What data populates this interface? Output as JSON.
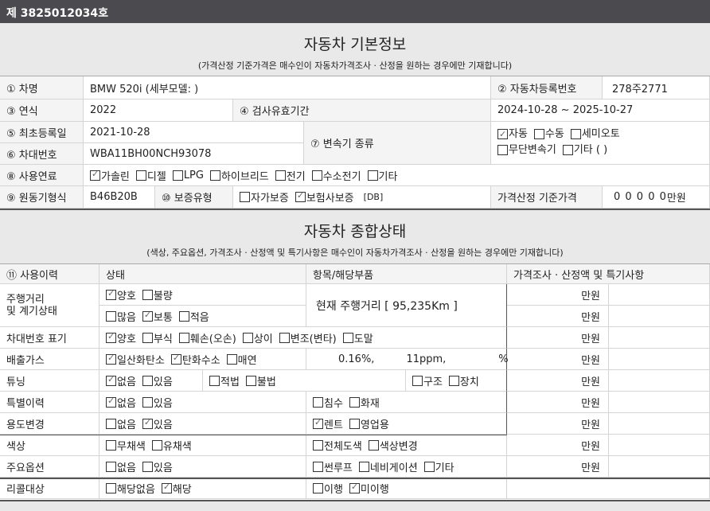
{
  "doc_number": "제 3825012034호",
  "basic": {
    "title": "자동차 기본정보",
    "subtitle": "(가격산정 기준가격은 매수인이 자동차가격조사 · 산정을 원하는 경우에만 기재합니다)",
    "car_name_label": "① 차명",
    "car_name": "BMW 520i (세부모델: )",
    "reg_no_label": "② 자동차등록번호",
    "reg_no": "278주2771",
    "year_label": "③ 연식",
    "year": "2022",
    "inspect_label": "④ 검사유효기간",
    "inspect": "2024-10-28 ~ 2025-10-27",
    "first_reg_label": "⑤ 최초등록일",
    "first_reg": "2021-10-28",
    "vin_label": "⑥ 차대번호",
    "vin": "WBA11BH00NCH93078",
    "trans_label": "⑦ 변속기 종류",
    "trans_row1": [
      {
        "label": "자동",
        "checked": true
      },
      {
        "label": "수동",
        "checked": false
      },
      {
        "label": "세미오토",
        "checked": false
      }
    ],
    "trans_row2": [
      {
        "label": "무단변속기",
        "checked": false
      },
      {
        "label": "기타 (       )",
        "checked": false
      }
    ],
    "fuel_label": "⑧ 사용연료",
    "fuel": [
      {
        "label": "가솔린",
        "checked": true
      },
      {
        "label": "디젤",
        "checked": false
      },
      {
        "label": "LPG",
        "checked": false
      },
      {
        "label": "하이브리드",
        "checked": false
      },
      {
        "label": "전기",
        "checked": false
      },
      {
        "label": "수소전기",
        "checked": false
      },
      {
        "label": "기타",
        "checked": false
      }
    ],
    "engine_label": "⑨ 원동기형식",
    "engine": "B46B20B",
    "warranty_label": "⑩ 보증유형",
    "warranty": [
      {
        "label": "자가보증",
        "checked": false
      },
      {
        "label": "보험사보증",
        "checked": true
      }
    ],
    "warranty_note": "[DB]",
    "base_price_label": "가격산정 기준가격",
    "base_price": "0 0 0 0 0",
    "base_price_unit": "만원"
  },
  "overall": {
    "title": "자동차 종합상태",
    "subtitle": "(색상, 주요옵션, 가격조사 · 산정액 및 특기사항은 매수인이 자동차가격조사 · 산정을 원하는 경우에만 기재합니다)",
    "headers": [
      "⑪ 사용이력",
      "상태",
      "항목/해당부품",
      "가격조사 · 산정액 및 특기사항"
    ],
    "unit": "만원",
    "mileage_label": "주행거리\n및 계기상태",
    "mileage_row1": [
      {
        "label": "양호",
        "checked": true
      },
      {
        "label": "불량",
        "checked": false
      }
    ],
    "mileage_row2": [
      {
        "label": "많음",
        "checked": false
      },
      {
        "label": "보통",
        "checked": true
      },
      {
        "label": "적음",
        "checked": false
      }
    ],
    "mileage_text": "현재 주행거리 [ 95,235Km ]",
    "vin_mark_label": "차대번호 표기",
    "vin_mark": [
      {
        "label": "양호",
        "checked": true
      },
      {
        "label": "부식",
        "checked": false
      },
      {
        "label": "훼손(오손)",
        "checked": false
      },
      {
        "label": "상이",
        "checked": false
      },
      {
        "label": "변조(변타)",
        "checked": false
      },
      {
        "label": "도말",
        "checked": false
      }
    ],
    "emission_label": "배출가스",
    "emission": [
      {
        "label": "일산화탄소",
        "checked": true
      },
      {
        "label": "탄화수소",
        "checked": true
      },
      {
        "label": "매연",
        "checked": false
      }
    ],
    "emission_values": [
      "0.16%,",
      "11ppm,",
      "%"
    ],
    "tuning_label": "튜닝",
    "tuning": [
      {
        "label": "없음",
        "checked": true
      },
      {
        "label": "있음",
        "checked": false
      }
    ],
    "tuning_legal": [
      {
        "label": "적법",
        "checked": false
      },
      {
        "label": "불법",
        "checked": false
      }
    ],
    "tuning_type": [
      {
        "label": "구조",
        "checked": false
      },
      {
        "label": "장치",
        "checked": false
      }
    ],
    "special_label": "특별이력",
    "special": [
      {
        "label": "없음",
        "checked": true
      },
      {
        "label": "있음",
        "checked": false
      }
    ],
    "special_items": [
      {
        "label": "침수",
        "checked": false
      },
      {
        "label": "화재",
        "checked": false
      }
    ],
    "usage_label": "용도변경",
    "usage": [
      {
        "label": "없음",
        "checked": false
      },
      {
        "label": "있음",
        "checked": true
      }
    ],
    "usage_items": [
      {
        "label": "렌트",
        "checked": true
      },
      {
        "label": "영업용",
        "checked": false
      }
    ],
    "color_label": "색상",
    "color": [
      {
        "label": "무채색",
        "checked": false
      },
      {
        "label": "유채색",
        "checked": false
      }
    ],
    "color_items": [
      {
        "label": "전체도색",
        "checked": false
      },
      {
        "label": "색상변경",
        "checked": false
      }
    ],
    "options_label": "주요옵션",
    "options": [
      {
        "label": "없음",
        "checked": false
      },
      {
        "label": "있음",
        "checked": false
      }
    ],
    "options_items": [
      {
        "label": "썬루프",
        "checked": false
      },
      {
        "label": "네비게이션",
        "checked": false
      },
      {
        "label": "기타",
        "checked": false
      }
    ],
    "recall_label": "리콜대상",
    "recall": [
      {
        "label": "해당없음",
        "checked": false
      },
      {
        "label": "해당",
        "checked": true
      }
    ],
    "recall_items": [
      {
        "label": "이행",
        "checked": false
      },
      {
        "label": "미이행",
        "checked": true
      }
    ]
  }
}
